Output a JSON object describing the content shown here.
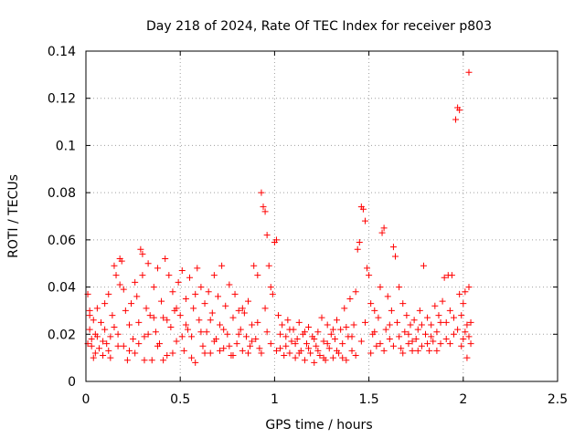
{
  "chart_data": {
    "type": "scatter",
    "title": "Day 218 of 2024, Rate Of TEC Index for receiver p803",
    "xlabel": "GPS time / hours",
    "ylabel": "ROTI / TECUs",
    "xlim": [
      0,
      2.5
    ],
    "ylim": [
      0,
      0.14
    ],
    "xticks": [
      0,
      0.5,
      1,
      1.5,
      2,
      2.5
    ],
    "xtick_labels": [
      "0",
      "0.5",
      "1",
      "1.5",
      "2",
      "2.5"
    ],
    "yticks": [
      0,
      0.02,
      0.04,
      0.06,
      0.08,
      0.1,
      0.12,
      0.14
    ],
    "ytick_labels": [
      "0",
      "0.02",
      "0.04",
      "0.06",
      "0.08",
      "0.1",
      "0.12",
      "0.14"
    ],
    "grid": true,
    "marker": "+",
    "series_color": "#ff0000",
    "series": [
      {
        "name": "ROTI",
        "points": [
          [
            0.01,
            0.037
          ],
          [
            0.02,
            0.03
          ],
          [
            0.02,
            0.022
          ],
          [
            0.03,
            0.018
          ],
          [
            0.03,
            0.015
          ],
          [
            0.04,
            0.026
          ],
          [
            0.05,
            0.02
          ],
          [
            0.05,
            0.012
          ],
          [
            0.06,
            0.019
          ],
          [
            0.07,
            0.014
          ],
          [
            0.08,
            0.025
          ],
          [
            0.09,
            0.011
          ],
          [
            0.1,
            0.022
          ],
          [
            0.1,
            0.033
          ],
          [
            0.11,
            0.016
          ],
          [
            0.12,
            0.037
          ],
          [
            0.13,
            0.019
          ],
          [
            0.13,
            0.01
          ],
          [
            0.14,
            0.028
          ],
          [
            0.15,
            0.049
          ],
          [
            0.16,
            0.045
          ],
          [
            0.17,
            0.02
          ],
          [
            0.18,
            0.041
          ],
          [
            0.18,
            0.052
          ],
          [
            0.19,
            0.051
          ],
          [
            0.2,
            0.015
          ],
          [
            0.21,
            0.03
          ],
          [
            0.22,
            0.009
          ],
          [
            0.23,
            0.024
          ],
          [
            0.24,
            0.033
          ],
          [
            0.25,
            0.018
          ],
          [
            0.26,
            0.012
          ],
          [
            0.27,
            0.036
          ],
          [
            0.28,
            0.025
          ],
          [
            0.29,
            0.056
          ],
          [
            0.3,
            0.054
          ],
          [
            0.3,
            0.045
          ],
          [
            0.31,
            0.019
          ],
          [
            0.32,
            0.031
          ],
          [
            0.33,
            0.05
          ],
          [
            0.34,
            0.028
          ],
          [
            0.35,
            0.009
          ],
          [
            0.36,
            0.04
          ],
          [
            0.37,
            0.021
          ],
          [
            0.38,
            0.048
          ],
          [
            0.39,
            0.016
          ],
          [
            0.4,
            0.034
          ],
          [
            0.41,
            0.027
          ],
          [
            0.42,
            0.052
          ],
          [
            0.43,
            0.011
          ],
          [
            0.44,
            0.045
          ],
          [
            0.45,
            0.023
          ],
          [
            0.46,
            0.038
          ],
          [
            0.47,
            0.03
          ],
          [
            0.48,
            0.017
          ],
          [
            0.49,
            0.042
          ],
          [
            0.5,
            0.028
          ],
          [
            0.51,
            0.047
          ],
          [
            0.52,
            0.013
          ],
          [
            0.53,
            0.035
          ],
          [
            0.54,
            0.022
          ],
          [
            0.55,
            0.044
          ],
          [
            0.56,
            0.019
          ],
          [
            0.57,
            0.031
          ],
          [
            0.58,
            0.008
          ],
          [
            0.59,
            0.048
          ],
          [
            0.6,
            0.026
          ],
          [
            0.61,
            0.04
          ],
          [
            0.62,
            0.015
          ],
          [
            0.63,
            0.033
          ],
          [
            0.64,
            0.021
          ],
          [
            0.65,
            0.038
          ],
          [
            0.66,
            0.012
          ],
          [
            0.67,
            0.029
          ],
          [
            0.68,
            0.045
          ],
          [
            0.69,
            0.018
          ],
          [
            0.7,
            0.036
          ],
          [
            0.71,
            0.024
          ],
          [
            0.72,
            0.049
          ],
          [
            0.73,
            0.014
          ],
          [
            0.74,
            0.032
          ],
          [
            0.75,
            0.02
          ],
          [
            0.76,
            0.041
          ],
          [
            0.77,
            0.011
          ],
          [
            0.78,
            0.027
          ],
          [
            0.79,
            0.037
          ],
          [
            0.8,
            0.016
          ],
          [
            0.81,
            0.03
          ],
          [
            0.82,
            0.022
          ],
          [
            0.83,
            0.013
          ],
          [
            0.84,
            0.029
          ],
          [
            0.85,
            0.019
          ],
          [
            0.86,
            0.034
          ],
          [
            0.87,
            0.015
          ],
          [
            0.88,
            0.024
          ],
          [
            0.89,
            0.049
          ],
          [
            0.9,
            0.018
          ],
          [
            0.91,
            0.045
          ],
          [
            0.92,
            0.014
          ],
          [
            0.93,
            0.08
          ],
          [
            0.94,
            0.074
          ],
          [
            0.95,
            0.072
          ],
          [
            0.95,
            0.031
          ],
          [
            0.96,
            0.062
          ],
          [
            0.97,
            0.049
          ],
          [
            0.98,
            0.04
          ],
          [
            0.99,
            0.037
          ],
          [
            1.0,
            0.059
          ],
          [
            1.01,
            0.06
          ],
          [
            1.02,
            0.028
          ],
          [
            1.03,
            0.014
          ],
          [
            1.04,
            0.024
          ],
          [
            1.05,
            0.011
          ],
          [
            1.06,
            0.019
          ],
          [
            1.07,
            0.026
          ],
          [
            1.08,
            0.012
          ],
          [
            1.09,
            0.017
          ],
          [
            1.1,
            0.022
          ],
          [
            1.11,
            0.01
          ],
          [
            1.12,
            0.018
          ],
          [
            1.13,
            0.025
          ],
          [
            1.14,
            0.013
          ],
          [
            1.15,
            0.02
          ],
          [
            1.16,
            0.009
          ],
          [
            1.17,
            0.016
          ],
          [
            1.18,
            0.023
          ],
          [
            1.19,
            0.012
          ],
          [
            1.2,
            0.019
          ],
          [
            1.21,
            0.008
          ],
          [
            1.22,
            0.015
          ],
          [
            1.23,
            0.021
          ],
          [
            1.24,
            0.011
          ],
          [
            1.25,
            0.027
          ],
          [
            1.26,
            0.017
          ],
          [
            1.27,
            0.009
          ],
          [
            1.28,
            0.024
          ],
          [
            1.29,
            0.014
          ],
          [
            1.3,
            0.02
          ],
          [
            1.31,
            0.01
          ],
          [
            1.32,
            0.018
          ],
          [
            1.33,
            0.026
          ],
          [
            1.34,
            0.012
          ],
          [
            1.35,
            0.022
          ],
          [
            1.36,
            0.016
          ],
          [
            1.37,
            0.031
          ],
          [
            1.38,
            0.009
          ],
          [
            1.39,
            0.019
          ],
          [
            1.4,
            0.035
          ],
          [
            1.41,
            0.013
          ],
          [
            1.42,
            0.024
          ],
          [
            1.43,
            0.038
          ],
          [
            1.44,
            0.056
          ],
          [
            1.45,
            0.059
          ],
          [
            1.46,
            0.074
          ],
          [
            1.47,
            0.073
          ],
          [
            1.48,
            0.068
          ],
          [
            1.49,
            0.048
          ],
          [
            1.5,
            0.045
          ],
          [
            1.51,
            0.033
          ],
          [
            1.52,
            0.02
          ],
          [
            1.53,
            0.03
          ],
          [
            1.54,
            0.015
          ],
          [
            1.55,
            0.027
          ],
          [
            1.56,
            0.04
          ],
          [
            1.57,
            0.063
          ],
          [
            1.58,
            0.065
          ],
          [
            1.59,
            0.022
          ],
          [
            1.6,
            0.036
          ],
          [
            1.61,
            0.018
          ],
          [
            1.62,
            0.03
          ],
          [
            1.63,
            0.057
          ],
          [
            1.64,
            0.053
          ],
          [
            1.65,
            0.025
          ],
          [
            1.66,
            0.04
          ],
          [
            1.67,
            0.014
          ],
          [
            1.68,
            0.033
          ],
          [
            1.69,
            0.021
          ],
          [
            1.7,
            0.028
          ],
          [
            1.71,
            0.016
          ],
          [
            1.72,
            0.024
          ],
          [
            1.73,
            0.013
          ],
          [
            1.74,
            0.026
          ],
          [
            1.75,
            0.018
          ],
          [
            1.76,
            0.022
          ],
          [
            1.77,
            0.03
          ],
          [
            1.78,
            0.015
          ],
          [
            1.79,
            0.049
          ],
          [
            1.8,
            0.02
          ],
          [
            1.81,
            0.027
          ],
          [
            1.82,
            0.013
          ],
          [
            1.83,
            0.024
          ],
          [
            1.84,
            0.017
          ],
          [
            1.85,
            0.032
          ],
          [
            1.86,
            0.021
          ],
          [
            1.87,
            0.028
          ],
          [
            1.88,
            0.016
          ],
          [
            1.89,
            0.034
          ],
          [
            1.9,
            0.044
          ],
          [
            1.91,
            0.025
          ],
          [
            1.92,
            0.045
          ],
          [
            1.93,
            0.03
          ],
          [
            1.94,
            0.045
          ],
          [
            1.95,
            0.02
          ],
          [
            1.96,
            0.111
          ],
          [
            1.97,
            0.116
          ],
          [
            1.98,
            0.115
          ],
          [
            1.99,
            0.028
          ],
          [
            2.0,
            0.018
          ],
          [
            2.01,
            0.038
          ],
          [
            2.02,
            0.024
          ],
          [
            2.03,
            0.131
          ],
          [
            2.03,
            0.04
          ],
          [
            2.04,
            0.016
          ],
          [
            2.02,
            0.01
          ],
          [
            2.01,
            0.021
          ],
          [
            2.0,
            0.033
          ],
          [
            1.98,
            0.037
          ],
          [
            0.01,
            0.016
          ],
          [
            0.02,
            0.028
          ],
          [
            0.04,
            0.01
          ],
          [
            0.06,
            0.031
          ],
          [
            0.09,
            0.017
          ],
          [
            0.12,
            0.013
          ],
          [
            0.15,
            0.023
          ],
          [
            0.17,
            0.015
          ],
          [
            0.2,
            0.039
          ],
          [
            0.23,
            0.013
          ],
          [
            0.26,
            0.042
          ],
          [
            0.28,
            0.016
          ],
          [
            0.31,
            0.009
          ],
          [
            0.33,
            0.02
          ],
          [
            0.36,
            0.027
          ],
          [
            0.38,
            0.015
          ],
          [
            0.41,
            0.009
          ],
          [
            0.43,
            0.026
          ],
          [
            0.46,
            0.012
          ],
          [
            0.48,
            0.031
          ],
          [
            0.51,
            0.019
          ],
          [
            0.53,
            0.024
          ],
          [
            0.56,
            0.01
          ],
          [
            0.58,
            0.037
          ],
          [
            0.61,
            0.021
          ],
          [
            0.63,
            0.012
          ],
          [
            0.66,
            0.026
          ],
          [
            0.68,
            0.017
          ],
          [
            0.71,
            0.013
          ],
          [
            0.73,
            0.022
          ],
          [
            0.76,
            0.015
          ],
          [
            0.78,
            0.011
          ],
          [
            0.81,
            0.02
          ],
          [
            0.83,
            0.031
          ],
          [
            0.86,
            0.012
          ],
          [
            0.88,
            0.017
          ],
          [
            0.91,
            0.025
          ],
          [
            0.93,
            0.012
          ],
          [
            0.96,
            0.021
          ],
          [
            0.98,
            0.016
          ],
          [
            1.01,
            0.013
          ],
          [
            1.03,
            0.02
          ],
          [
            1.06,
            0.015
          ],
          [
            1.08,
            0.022
          ],
          [
            1.11,
            0.016
          ],
          [
            1.13,
            0.012
          ],
          [
            1.16,
            0.021
          ],
          [
            1.18,
            0.014
          ],
          [
            1.21,
            0.018
          ],
          [
            1.23,
            0.013
          ],
          [
            1.26,
            0.01
          ],
          [
            1.28,
            0.016
          ],
          [
            1.31,
            0.022
          ],
          [
            1.33,
            0.013
          ],
          [
            1.36,
            0.01
          ],
          [
            1.38,
            0.023
          ],
          [
            1.41,
            0.019
          ],
          [
            1.43,
            0.011
          ],
          [
            1.46,
            0.017
          ],
          [
            1.48,
            0.025
          ],
          [
            1.51,
            0.012
          ],
          [
            1.53,
            0.021
          ],
          [
            1.56,
            0.016
          ],
          [
            1.58,
            0.013
          ],
          [
            1.61,
            0.024
          ],
          [
            1.63,
            0.015
          ],
          [
            1.66,
            0.019
          ],
          [
            1.68,
            0.012
          ],
          [
            1.71,
            0.02
          ],
          [
            1.73,
            0.017
          ],
          [
            1.76,
            0.013
          ],
          [
            1.78,
            0.024
          ],
          [
            1.81,
            0.016
          ],
          [
            1.83,
            0.019
          ],
          [
            1.86,
            0.013
          ],
          [
            1.88,
            0.025
          ],
          [
            1.91,
            0.018
          ],
          [
            1.93,
            0.016
          ],
          [
            1.95,
            0.027
          ],
          [
            1.97,
            0.022
          ],
          [
            1.99,
            0.015
          ],
          [
            2.03,
            0.019
          ],
          [
            2.04,
            0.025
          ]
        ]
      }
    ]
  }
}
